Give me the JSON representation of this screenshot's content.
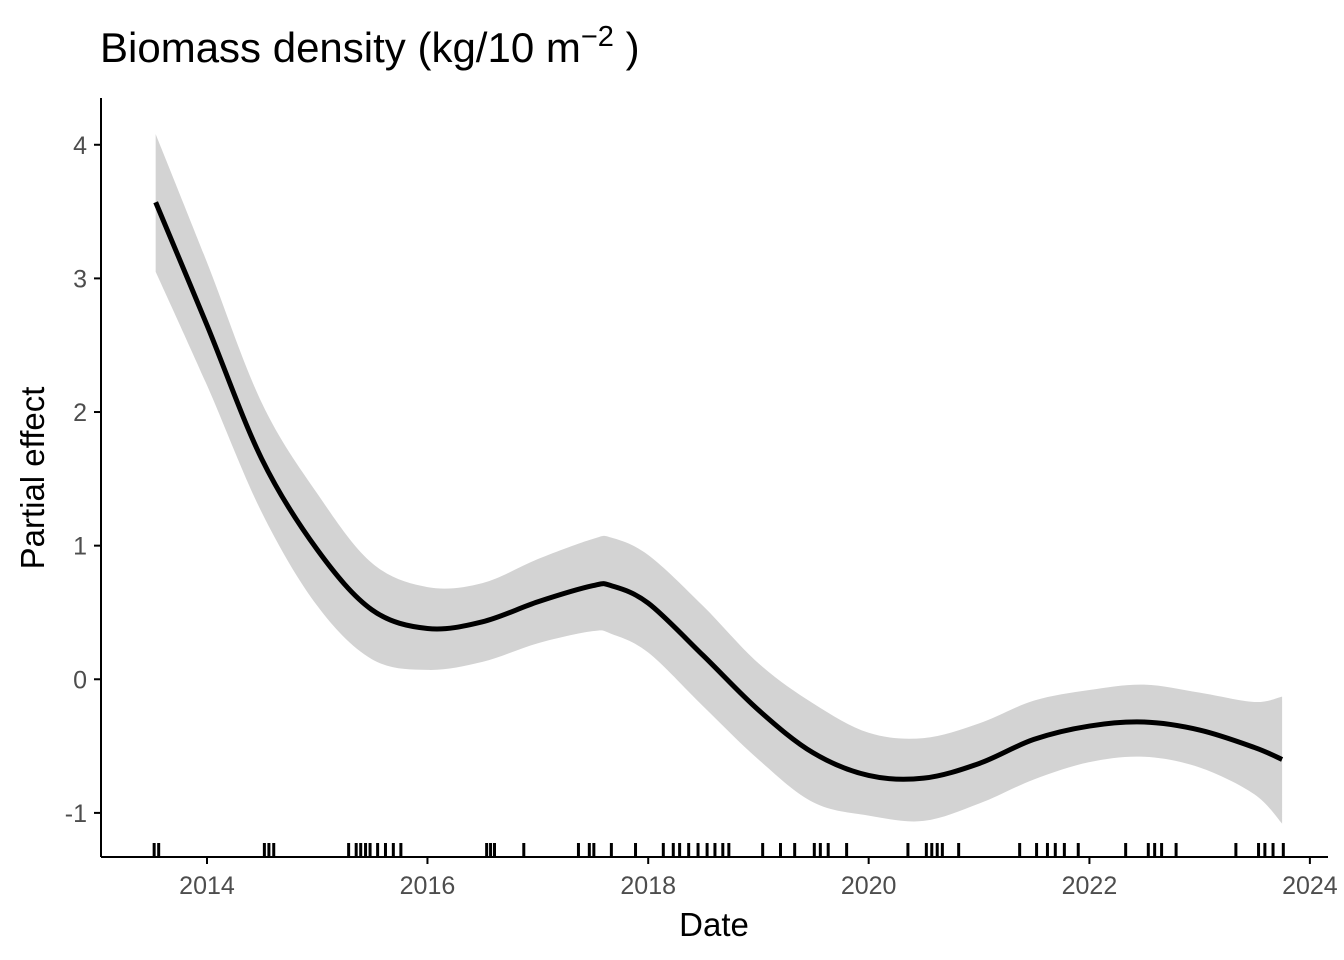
{
  "chart_data": {
    "type": "line",
    "title": "Biomass density (kg/10 m",
    "title_superscript": "−2",
    "title_suffix": " )",
    "xlabel": "Date",
    "ylabel": "Partial effect",
    "xlim": [
      "2013-01-15",
      "2024-03-01"
    ],
    "ylim": [
      -1.33,
      4.35
    ],
    "x_ticks": [
      {
        "date": "2014-01-01",
        "label": "2014"
      },
      {
        "date": "2016-01-01",
        "label": "2016"
      },
      {
        "date": "2018-01-01",
        "label": "2018"
      },
      {
        "date": "2020-01-01",
        "label": "2020"
      },
      {
        "date": "2022-01-01",
        "label": "2022"
      },
      {
        "date": "2024-01-01",
        "label": "2024"
      }
    ],
    "y_ticks": [
      {
        "value": -1,
        "label": "-1"
      },
      {
        "value": 0,
        "label": "0"
      },
      {
        "value": 1,
        "label": "1"
      },
      {
        "value": 2,
        "label": "2"
      },
      {
        "value": 3,
        "label": "3"
      },
      {
        "value": 4,
        "label": "4"
      }
    ],
    "grid": false,
    "colors": {
      "line": "#000000",
      "band": "#d3d3d3",
      "axis": "#000000",
      "rug": "#000000"
    },
    "series": [
      {
        "x": [
          "2013-07-15",
          "2014-01-01",
          "2014-07-01",
          "2015-01-01",
          "2015-07-01",
          "2016-01-01",
          "2016-07-01",
          "2017-01-01",
          "2017-07-01",
          "2017-09-01",
          "2018-01-01",
          "2018-07-01",
          "2019-01-01",
          "2019-07-01",
          "2020-01-01",
          "2020-07-01",
          "2021-01-01",
          "2021-07-01",
          "2022-01-01",
          "2022-07-01",
          "2023-01-01",
          "2023-07-01",
          "2023-10-01"
        ],
        "y": [
          3.57,
          2.65,
          1.65,
          0.97,
          0.52,
          0.38,
          0.43,
          0.58,
          0.7,
          0.7,
          0.57,
          0.18,
          -0.23,
          -0.55,
          -0.72,
          -0.74,
          -0.63,
          -0.45,
          -0.35,
          -0.32,
          -0.38,
          -0.51,
          -0.6
        ],
        "lower": [
          3.05,
          2.2,
          1.25,
          0.55,
          0.15,
          0.07,
          0.13,
          0.27,
          0.36,
          0.34,
          0.2,
          -0.2,
          -0.6,
          -0.92,
          -1.02,
          -1.06,
          -0.93,
          -0.75,
          -0.62,
          -0.58,
          -0.66,
          -0.86,
          -1.08
        ],
        "upper": [
          4.08,
          3.12,
          2.07,
          1.39,
          0.87,
          0.69,
          0.72,
          0.9,
          1.05,
          1.06,
          0.93,
          0.55,
          0.12,
          -0.18,
          -0.4,
          -0.44,
          -0.33,
          -0.16,
          -0.08,
          -0.04,
          -0.1,
          -0.17,
          -0.13
        ]
      }
    ],
    "rug": [
      "2013-07-10",
      "2013-07-25",
      "2014-07-10",
      "2014-07-25",
      "2014-08-10",
      "2015-04-15",
      "2015-05-10",
      "2015-05-25",
      "2015-06-10",
      "2015-06-25",
      "2015-07-20",
      "2015-08-15",
      "2015-09-10",
      "2015-10-05",
      "2016-07-15",
      "2016-07-28",
      "2016-08-10",
      "2016-11-15",
      "2017-05-15",
      "2017-06-20",
      "2017-07-05",
      "2017-09-01",
      "2017-11-20",
      "2018-02-20",
      "2018-03-25",
      "2018-04-15",
      "2018-05-15",
      "2018-06-15",
      "2018-07-15",
      "2018-08-10",
      "2018-09-05",
      "2018-09-25",
      "2019-01-15",
      "2019-03-15",
      "2019-05-01",
      "2019-07-05",
      "2019-07-25",
      "2019-08-20",
      "2019-10-20",
      "2020-05-10",
      "2020-07-10",
      "2020-07-28",
      "2020-08-15",
      "2020-09-01",
      "2020-10-25",
      "2021-05-15",
      "2021-07-10",
      "2021-08-15",
      "2021-09-10",
      "2021-10-10",
      "2021-11-25",
      "2022-05-01",
      "2022-07-15",
      "2022-08-05",
      "2022-08-28",
      "2022-10-15",
      "2023-05-01",
      "2023-07-15",
      "2023-08-05",
      "2023-09-01",
      "2023-10-05"
    ]
  }
}
